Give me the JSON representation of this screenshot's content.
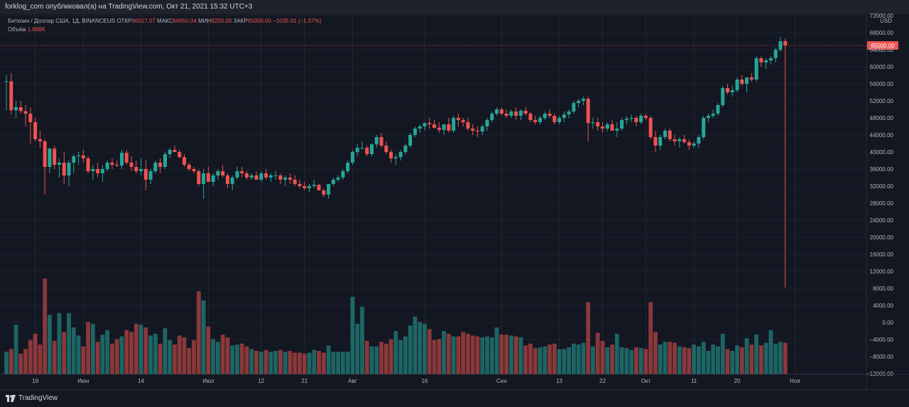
{
  "header": {
    "publisher_line": "forklog_com опубликовал(а) на TradingView.com, Окт 21, 2021 15:32 UTC+3"
  },
  "legend": {
    "symbol": "Биткоин / Доллар США, 1Д, BINANCEUS",
    "open_label": "ОТКР",
    "open_value": "66017.07",
    "high_label": "МАКС",
    "high_value": "66650.04",
    "low_label": "МИН",
    "low_value": "8200.00",
    "close_label": "ЗАКР",
    "close_value": "65000.00",
    "change": "−1035.91 (−1.57%)",
    "volume_label": "Объём",
    "volume_value": "1.688K"
  },
  "footer": {
    "logo_text": "TradingView"
  },
  "colors": {
    "up": "#26a69a",
    "down": "#ef5350",
    "background": "#131722",
    "grid": "#2a2e39",
    "text": "#b2b5be"
  },
  "chart_data": {
    "type": "candlestick",
    "currency": "USD",
    "price_axis_ticks": [
      "72000.00",
      "68000.00",
      "64000.00",
      "60000.00",
      "56000.00",
      "52000.00",
      "48000.00",
      "44000.00",
      "40000.00",
      "36000.00",
      "32000.00",
      "28000.00",
      "24000.00",
      "20000.00",
      "16000.00",
      "12000.00",
      "8000.00",
      "4000.00",
      "0.00",
      "−4000.00",
      "−8000.00",
      "−12000.00"
    ],
    "price_axis_range": [
      -12000,
      72000
    ],
    "last_price_label": "65000.00",
    "last_price": 65000,
    "x_axis_labels": [
      {
        "label": "19",
        "index": 6
      },
      {
        "label": "Июн",
        "index": 16
      },
      {
        "label": "14",
        "index": 28
      },
      {
        "label": "Июл",
        "index": 42
      },
      {
        "label": "12",
        "index": 53
      },
      {
        "label": "21",
        "index": 62
      },
      {
        "label": "Авг",
        "index": 72
      },
      {
        "label": "16",
        "index": 87
      },
      {
        "label": "Сен",
        "index": 103
      },
      {
        "label": "13",
        "index": 115
      },
      {
        "label": "22",
        "index": 124
      },
      {
        "label": "Окт",
        "index": 133
      },
      {
        "label": "11",
        "index": 143
      },
      {
        "label": "20",
        "index": 152
      },
      {
        "label": "Ноя",
        "index": 164
      }
    ],
    "candles": [
      [
        0,
        56500,
        58000,
        49800,
        56600,
        2.5
      ],
      [
        1,
        56600,
        58500,
        48800,
        49800,
        2.8
      ],
      [
        2,
        49800,
        52000,
        48000,
        50500,
        5.5
      ],
      [
        3,
        50500,
        52000,
        49000,
        49600,
        2.3
      ],
      [
        4,
        49600,
        51000,
        46000,
        49000,
        2.8
      ],
      [
        5,
        49000,
        50500,
        42000,
        47000,
        3.8
      ],
      [
        6,
        47000,
        48000,
        42500,
        43000,
        4.5
      ],
      [
        7,
        43000,
        45000,
        41000,
        42500,
        3.3
      ],
      [
        8,
        42500,
        43000,
        30000,
        36500,
        10.6
      ],
      [
        9,
        36500,
        41000,
        35000,
        40800,
        6.6
      ],
      [
        10,
        40800,
        41500,
        36000,
        37000,
        3.7
      ],
      [
        11,
        37000,
        38500,
        34000,
        37500,
        6.8
      ],
      [
        12,
        37500,
        40000,
        32500,
        34500,
        4.7
      ],
      [
        13,
        34500,
        38000,
        32000,
        37500,
        6.8
      ],
      [
        14,
        37500,
        39500,
        35000,
        39000,
        5.2
      ],
      [
        15,
        39000,
        40000,
        37000,
        39200,
        4.3
      ],
      [
        16,
        39200,
        40500,
        37500,
        38500,
        3.1
      ],
      [
        17,
        38500,
        39000,
        35000,
        35500,
        5.8
      ],
      [
        18,
        35500,
        37000,
        33500,
        36000,
        5.6
      ],
      [
        19,
        36000,
        37500,
        34000,
        35000,
        3.6
      ],
      [
        20,
        35000,
        37000,
        33000,
        36000,
        4.4
      ],
      [
        21,
        36000,
        38000,
        35500,
        37500,
        4.9
      ],
      [
        22,
        37500,
        38500,
        36000,
        37000,
        3.4
      ],
      [
        23,
        37000,
        38000,
        36500,
        36800,
        3.9
      ],
      [
        24,
        36800,
        40500,
        36000,
        39800,
        4.2
      ],
      [
        25,
        39800,
        40500,
        37000,
        37500,
        4.9
      ],
      [
        26,
        37500,
        39000,
        35500,
        36500,
        4.7
      ],
      [
        27,
        36500,
        38000,
        35000,
        35500,
        5.6
      ],
      [
        28,
        35500,
        38500,
        34500,
        36000,
        5.5
      ],
      [
        29,
        36000,
        38000,
        31000,
        33500,
        5.2
      ],
      [
        30,
        33500,
        36000,
        32500,
        35500,
        4.3
      ],
      [
        31,
        35500,
        38000,
        35000,
        37500,
        4.5
      ],
      [
        32,
        37500,
        38500,
        35000,
        36500,
        3.4
      ],
      [
        33,
        36500,
        40000,
        36000,
        39500,
        5.1
      ],
      [
        34,
        39500,
        41000,
        38500,
        40500,
        3.8
      ],
      [
        35,
        40500,
        41500,
        40000,
        40000,
        3.3
      ],
      [
        36,
        40000,
        40500,
        38500,
        38800,
        4.3
      ],
      [
        37,
        38800,
        39500,
        36500,
        37000,
        4.1
      ],
      [
        38,
        37000,
        37500,
        35500,
        36000,
        2.9
      ],
      [
        39,
        36000,
        36500,
        35000,
        35500,
        3.8
      ],
      [
        40,
        35500,
        36000,
        32000,
        32500,
        9.2
      ],
      [
        41,
        32500,
        36000,
        29000,
        35000,
        8.2
      ],
      [
        42,
        35000,
        36500,
        33500,
        33000,
        5.3
      ],
      [
        43,
        33000,
        35000,
        32000,
        34500,
        3.9
      ],
      [
        44,
        34500,
        36000,
        33500,
        35500,
        3.6
      ],
      [
        45,
        35500,
        37000,
        34000,
        34500,
        4.4
      ],
      [
        46,
        34500,
        35000,
        31500,
        32500,
        4.1
      ],
      [
        47,
        32500,
        34500,
        31000,
        34000,
        3.2
      ],
      [
        48,
        34000,
        36500,
        33500,
        35500,
        3.3
      ],
      [
        49,
        35500,
        36500,
        34000,
        35000,
        3.4
      ],
      [
        50,
        35000,
        35500,
        33500,
        34000,
        3.1
      ],
      [
        51,
        34000,
        35000,
        33500,
        34500,
        2.8
      ],
      [
        52,
        34500,
        35500,
        33500,
        33500,
        2.6
      ],
      [
        53,
        33500,
        35500,
        33000,
        35000,
        2.5
      ],
      [
        54,
        35000,
        36000,
        33500,
        34000,
        2.7
      ],
      [
        55,
        34000,
        35000,
        33000,
        34500,
        2.5
      ],
      [
        56,
        34500,
        35500,
        33500,
        34500,
        2.6
      ],
      [
        57,
        34500,
        35000,
        32500,
        33500,
        2.7
      ],
      [
        58,
        33500,
        34500,
        32000,
        34000,
        2.5
      ],
      [
        59,
        34000,
        35000,
        32500,
        33500,
        2.6
      ],
      [
        60,
        33500,
        34500,
        32000,
        32500,
        2.4
      ],
      [
        61,
        32500,
        33500,
        31500,
        32000,
        2.4
      ],
      [
        62,
        32000,
        33000,
        31000,
        31500,
        2.3
      ],
      [
        63,
        31500,
        32500,
        30500,
        32000,
        2.4
      ],
      [
        64,
        32000,
        33500,
        31500,
        32300,
        2.7
      ],
      [
        65,
        32300,
        32500,
        31000,
        31000,
        2.6
      ],
      [
        66,
        31000,
        31500,
        29500,
        30000,
        2.4
      ],
      [
        67,
        30000,
        32500,
        29000,
        32500,
        3.2
      ],
      [
        68,
        32500,
        34000,
        32000,
        33500,
        2.5
      ],
      [
        69,
        33500,
        34500,
        33000,
        34000,
        2.5
      ],
      [
        70,
        34000,
        36000,
        33500,
        35500,
        2.5
      ],
      [
        71,
        35500,
        38000,
        35000,
        37500,
        2.5
      ],
      [
        72,
        37500,
        40500,
        37000,
        40000,
        8.6
      ],
      [
        73,
        40000,
        42000,
        39000,
        41000,
        5.6
      ],
      [
        74,
        41000,
        42500,
        40500,
        41000,
        7.5
      ],
      [
        75,
        41000,
        41500,
        39000,
        39500,
        3.7
      ],
      [
        76,
        39500,
        42000,
        39000,
        41800,
        3.1
      ],
      [
        77,
        41800,
        44000,
        41000,
        43500,
        3.1
      ],
      [
        78,
        43500,
        44500,
        41000,
        41500,
        3.6
      ],
      [
        79,
        41500,
        42500,
        39500,
        40000,
        3.4
      ],
      [
        80,
        40000,
        40500,
        37500,
        38500,
        3.9
      ],
      [
        81,
        38500,
        39500,
        37000,
        38800,
        4.8
      ],
      [
        82,
        38800,
        40500,
        38000,
        40000,
        3.8
      ],
      [
        83,
        40000,
        42000,
        39500,
        41500,
        4.2
      ],
      [
        84,
        41500,
        44500,
        41000,
        44000,
        5.4
      ],
      [
        85,
        44000,
        46000,
        43500,
        45500,
        6.4
      ],
      [
        86,
        45500,
        46500,
        44500,
        46000,
        5.8
      ],
      [
        87,
        46000,
        47000,
        45000,
        46800,
        5.6
      ],
      [
        88,
        46800,
        48000,
        45500,
        46500,
        5.0
      ],
      [
        89,
        46500,
        47500,
        45500,
        45700,
        3.8
      ],
      [
        90,
        45700,
        47000,
        44500,
        45200,
        3.9
      ],
      [
        91,
        45200,
        46500,
        44000,
        46500,
        4.8
      ],
      [
        92,
        46500,
        48000,
        44500,
        45000,
        4.5
      ],
      [
        93,
        45000,
        48500,
        44500,
        48000,
        4.2
      ],
      [
        94,
        48000,
        49000,
        46000,
        47500,
        4.2
      ],
      [
        95,
        47500,
        48000,
        46000,
        47000,
        4.7
      ],
      [
        96,
        47000,
        48000,
        45000,
        45500,
        4.5
      ],
      [
        97,
        45500,
        46500,
        44000,
        45000,
        4.3
      ],
      [
        98,
        45000,
        46000,
        43500,
        44800,
        4.2
      ],
      [
        99,
        44800,
        46500,
        44000,
        46000,
        4.1
      ],
      [
        100,
        46000,
        48000,
        45000,
        47500,
        4.2
      ],
      [
        101,
        47500,
        49500,
        47000,
        49000,
        4.1
      ],
      [
        102,
        49000,
        50500,
        48500,
        50000,
        5.2
      ],
      [
        103,
        50000,
        50500,
        48500,
        49000,
        4.4
      ],
      [
        104,
        49000,
        50000,
        48000,
        48500,
        4.4
      ],
      [
        105,
        48500,
        50000,
        48000,
        49500,
        4.3
      ],
      [
        106,
        49500,
        50500,
        47500,
        48500,
        4.2
      ],
      [
        107,
        48500,
        50000,
        47500,
        49700,
        4.1
      ],
      [
        108,
        49700,
        50500,
        48500,
        49000,
        3.2
      ],
      [
        109,
        49000,
        49500,
        47000,
        47500,
        3.4
      ],
      [
        110,
        47500,
        48500,
        46500,
        47000,
        2.9
      ],
      [
        111,
        47000,
        48500,
        46500,
        48000,
        3.0
      ],
      [
        112,
        48000,
        49500,
        47500,
        49000,
        3.1
      ],
      [
        113,
        49000,
        50000,
        48000,
        48500,
        3.3
      ],
      [
        114,
        48500,
        49000,
        46500,
        47000,
        3.4
      ],
      [
        115,
        47000,
        48500,
        46500,
        48000,
        2.8
      ],
      [
        116,
        48000,
        49500,
        47000,
        48800,
        2.8
      ],
      [
        117,
        48800,
        50000,
        48000,
        49500,
        3.0
      ],
      [
        118,
        49500,
        52000,
        49000,
        51500,
        3.4
      ],
      [
        119,
        51500,
        52500,
        50500,
        52000,
        3.3
      ],
      [
        120,
        52000,
        53000,
        51000,
        52500,
        3.5
      ],
      [
        121,
        52500,
        53000,
        42500,
        46800,
        8.0
      ],
      [
        122,
        46800,
        48000,
        45500,
        47000,
        3.1
      ],
      [
        123,
        47000,
        48000,
        45000,
        46000,
        4.6
      ],
      [
        124,
        46000,
        47000,
        44500,
        45500,
        3.7
      ],
      [
        125,
        45500,
        47000,
        44800,
        46500,
        3.0
      ],
      [
        126,
        46500,
        47500,
        45500,
        45000,
        3.3
      ],
      [
        127,
        45000,
        47000,
        43500,
        45500,
        4.5
      ],
      [
        128,
        45500,
        48000,
        45000,
        47500,
        3.0
      ],
      [
        129,
        47500,
        48500,
        46500,
        47800,
        2.9
      ],
      [
        130,
        47800,
        48800,
        47000,
        48000,
        2.7
      ],
      [
        131,
        48000,
        48500,
        46000,
        47000,
        3.0
      ],
      [
        132,
        47000,
        49000,
        46500,
        48500,
        2.9
      ],
      [
        133,
        48500,
        49000,
        47500,
        48000,
        2.8
      ],
      [
        134,
        48000,
        48500,
        43000,
        43500,
        8.0
      ],
      [
        135,
        43500,
        45000,
        40000,
        41500,
        4.7
      ],
      [
        136,
        41500,
        44000,
        40500,
        43500,
        3.3
      ],
      [
        137,
        43500,
        45500,
        43000,
        45000,
        3.6
      ],
      [
        138,
        45000,
        45500,
        42500,
        43000,
        3.6
      ],
      [
        139,
        43000,
        44000,
        41500,
        42500,
        3.5
      ],
      [
        140,
        42500,
        43500,
        41000,
        43000,
        3.1
      ],
      [
        141,
        43000,
        44000,
        42000,
        42300,
        3.0
      ],
      [
        142,
        42300,
        43000,
        40500,
        41500,
        2.9
      ],
      [
        143,
        41500,
        42500,
        41000,
        42000,
        3.3
      ],
      [
        144,
        42000,
        44000,
        41000,
        43500,
        3.1
      ],
      [
        145,
        43500,
        48500,
        43000,
        48000,
        3.6
      ],
      [
        146,
        48000,
        49000,
        47000,
        48500,
        2.6
      ],
      [
        147,
        48500,
        50000,
        48000,
        49000,
        3.3
      ],
      [
        148,
        49000,
        51500,
        48500,
        51000,
        3.1
      ],
      [
        149,
        51000,
        55500,
        50500,
        55000,
        4.5
      ],
      [
        150,
        55000,
        56000,
        53500,
        54000,
        2.8
      ],
      [
        151,
        54000,
        55500,
        53000,
        54500,
        2.6
      ],
      [
        152,
        54500,
        57500,
        54000,
        57000,
        3.2
      ],
      [
        153,
        57000,
        58000,
        55500,
        56000,
        3.0
      ],
      [
        154,
        56000,
        57500,
        54000,
        57500,
        4.0
      ],
      [
        155,
        57500,
        58500,
        56500,
        57000,
        3.3
      ],
      [
        156,
        57000,
        62500,
        56500,
        62000,
        4.4
      ],
      [
        157,
        62000,
        62500,
        60000,
        61000,
        3.2
      ],
      [
        158,
        61000,
        62000,
        59500,
        61500,
        3.5
      ],
      [
        159,
        61500,
        62500,
        60500,
        62000,
        4.9
      ],
      [
        160,
        62000,
        64500,
        61000,
        64000,
        3.4
      ],
      [
        161,
        64000,
        67000,
        63500,
        66000,
        3.6
      ],
      [
        162,
        66017.07,
        66650.04,
        8200,
        65000,
        3.5
      ]
    ]
  }
}
